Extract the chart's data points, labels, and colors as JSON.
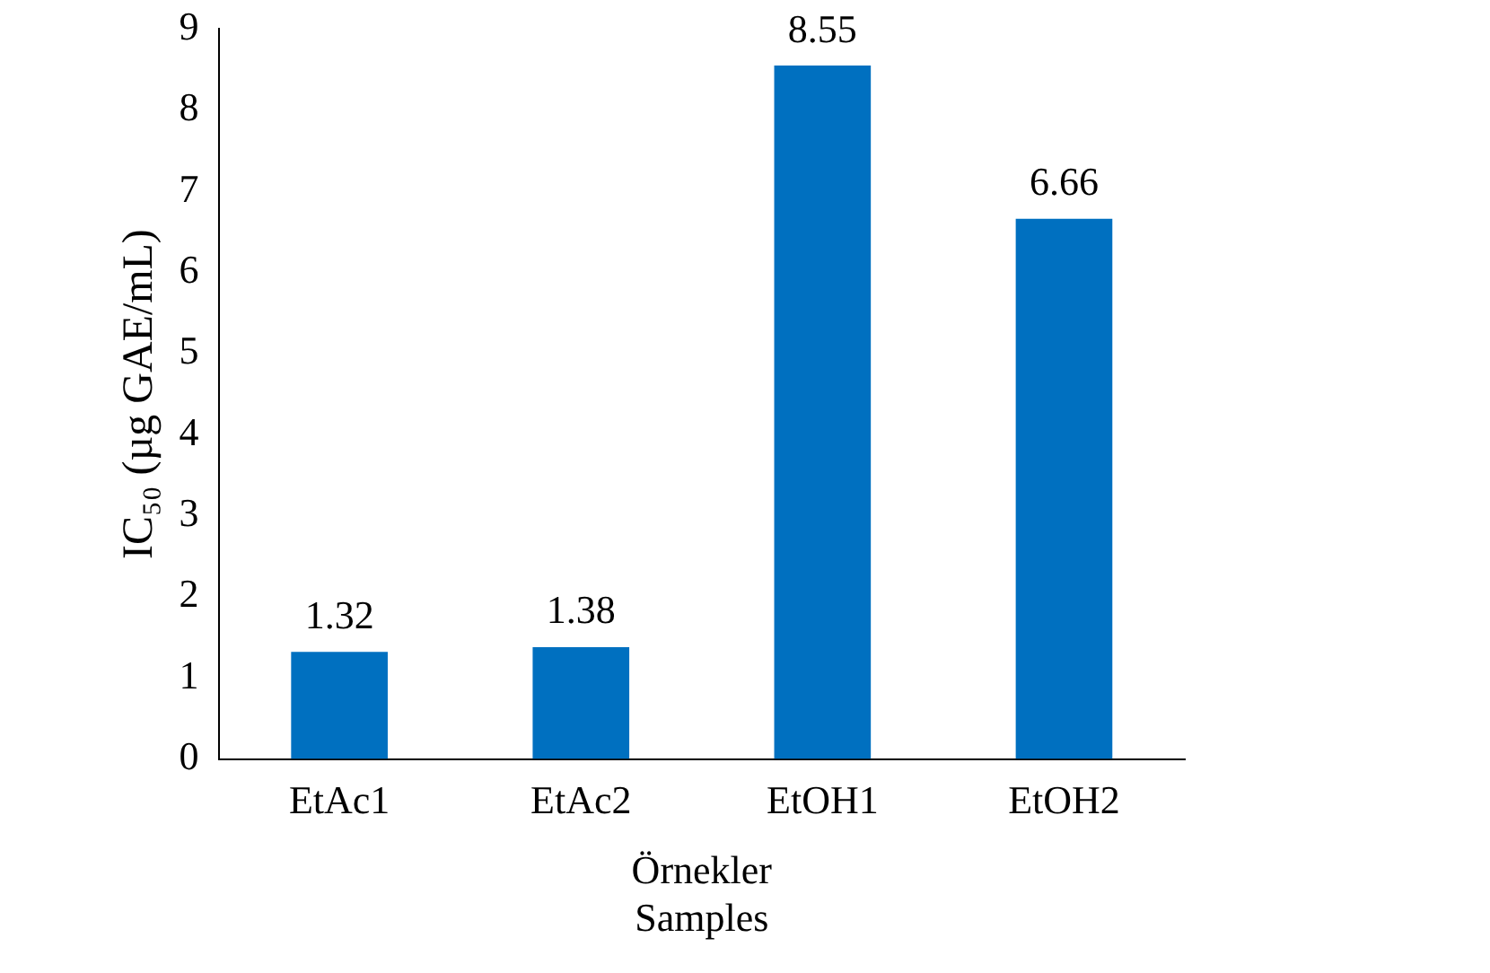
{
  "chart_data": {
    "type": "bar",
    "xlabel": "Örnekler\nSamples",
    "ylabel": "IC₅₀ (µg GAE/mL)",
    "categories": [
      "EtAc1",
      "EtAc2",
      "EtOH1",
      "EtOH2"
    ],
    "values": [
      1.32,
      1.38,
      8.55,
      6.66
    ],
    "color": "#0070c0",
    "ylim": [
      0,
      9
    ],
    "yticks": [
      0,
      1,
      2,
      3,
      4,
      5,
      6,
      7,
      8,
      9
    ],
    "grid": false,
    "legend": false,
    "data_labels": true
  }
}
